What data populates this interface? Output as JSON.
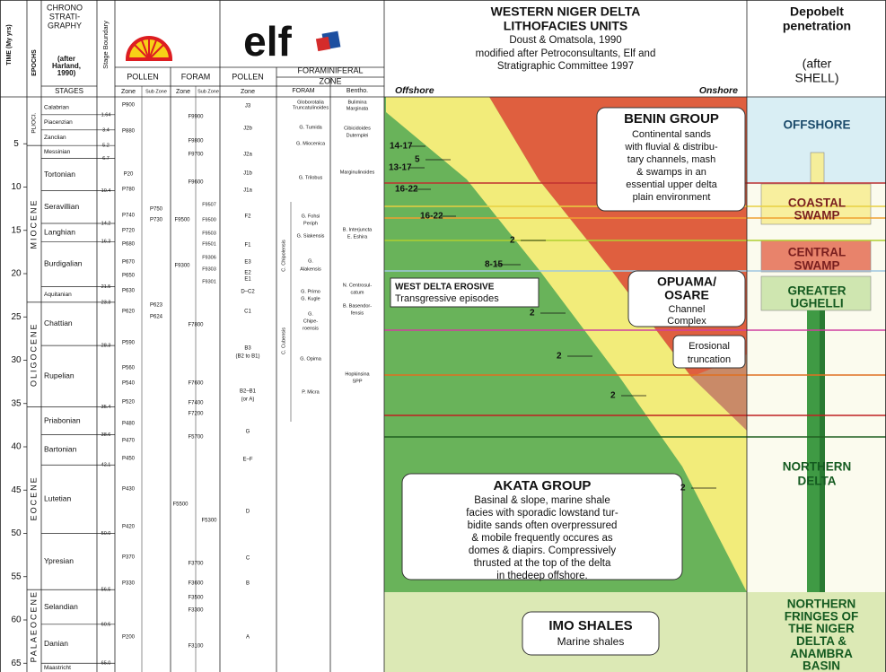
{
  "header": {
    "time_label": "TIME (My yrs)",
    "epochs_label": "EPOCHS",
    "chrono_title": [
      "CHRONO",
      "STRATI-",
      "GRAPHY"
    ],
    "chrono_source": [
      "(after",
      "Harland,",
      "1990)"
    ],
    "stages_label": "STAGES",
    "boundary_label": "Stage Boundary",
    "elf": "elf",
    "columns": [
      "POLLEN",
      "FORAM",
      "POLLEN",
      "FORAMINIFERAL",
      "ZONE",
      "FORAM",
      "Bentho."
    ],
    "subcolumns": [
      "Zone",
      "Sub Zone",
      "Zone",
      "Sub Zone",
      "Zone"
    ],
    "litho_title": [
      "WESTERN NIGER DELTA",
      "LITHOFACIES UNITS",
      "Doust & Omatsola, 1990",
      "modified after Petroconsultants, Elf and",
      "Stratigraphic Committee 1997"
    ],
    "offshore": "Offshore",
    "onshore": "Onshore",
    "depobelt_title": [
      "Depobelt",
      "penetration",
      "(after",
      "SHELL)"
    ]
  },
  "time_ticks": [
    5,
    10,
    15,
    20,
    25,
    30,
    35,
    40,
    45,
    50,
    55,
    60,
    65
  ],
  "epochs": [
    "PLIOCI.",
    "MIOCENE",
    "OLIGOCENE",
    "EOCENE",
    "PALAEOCENE"
  ],
  "stages": [
    "Calabrian",
    "Piacenzian",
    "Zanclian",
    "Messinian",
    "Tortonian",
    "Seravillian",
    "Langhian",
    "Burdigalian",
    "Aquitanian",
    "Chattian",
    "Rupelian",
    "Priabonian",
    "Bartonian",
    "Lutetian",
    "Ypresian",
    "Selandian",
    "Danian",
    "Maastricht"
  ],
  "boundaries": [
    1.64,
    3.4,
    5.2,
    6.7,
    10.4,
    14.2,
    16.3,
    21.5,
    23.3,
    28.3,
    35.4,
    38.6,
    42.1,
    {
      "value": 50,
      "label": "50.0"
    },
    56.5,
    60.5,
    {
      "value": 65,
      "label": "65.0"
    }
  ],
  "shell_pollen_zones": [
    "P900",
    "P880",
    "P20",
    "P780",
    "P740",
    "P720",
    "P680",
    "P670",
    "P650",
    "P630",
    "P620",
    "P590",
    "P560",
    "P540",
    "P520",
    "P480",
    "P470",
    "P450",
    "P430",
    "P420",
    "P370",
    "P330",
    "P200"
  ],
  "shell_pollen_subzones": [
    "P750",
    "P730",
    "P623",
    "P624"
  ],
  "shell_foram_zones": [
    "F9900",
    "F9800",
    "F9700",
    "F9600",
    "F9500",
    "F9300",
    "F7800",
    "F7600",
    "F7400",
    "F7200",
    "F5700",
    "F5500",
    "F5300",
    "F3700",
    "F3600",
    "F3500",
    "F3300",
    "F3100"
  ],
  "shell_foram_subzones": [
    "F9507",
    "F9500",
    "F9503",
    "F9501",
    "F9306",
    "F9303",
    "F9301"
  ],
  "elf_pollen_zones": [
    "J3",
    "J2b",
    "J2a",
    "J1b",
    "J1a",
    "F2",
    "F1",
    "E3",
    "E2",
    "E1",
    "D–C2",
    "C1",
    "B3",
    "(B2 to B1)",
    "B2–B1",
    "(or A)",
    "G",
    "E–F",
    "D",
    "C",
    "B",
    "A"
  ],
  "elf_foram_zones": [
    "Globorotalia",
    "Truncatulinoides",
    "G. Tumida",
    "G. Miocenica",
    "G. Trilobus",
    "G. Fohsi",
    "Periph",
    "G. Siakensis",
    "G.",
    "Alakensis",
    "G. Primo",
    "G. Kugle",
    "G.",
    "Chipe-",
    "roensis",
    "G. Opima",
    "P. Micra"
  ],
  "elf_foram_groups": [
    "C. Chipolensis",
    "C. Cubensis"
  ],
  "elf_bentho_zones": [
    "Bulimina",
    "Marginata",
    "Cibicidoides",
    "Dutemplei",
    "Marginulinoides",
    "B. Interjuncta",
    "E. Eshira",
    "N. Centrosul-",
    "catum",
    "B. Basendor-",
    "fensis",
    "Hopkinsina",
    "SPP"
  ],
  "lithofacies": {
    "benin": [
      "BENIN GROUP",
      "Continental sands",
      "with fluvial & distribu-",
      "tary channels, mash",
      "& swamps in an",
      "essential upper delta",
      "plain environment"
    ],
    "west_delta": [
      "WEST DELTA EROSIVE",
      "Transgressive episodes"
    ],
    "opuama": [
      "OPUAMA/",
      "OSARE",
      "Channel",
      "Complex"
    ],
    "erosional": [
      "Erosional",
      "truncation"
    ],
    "akata": [
      "AKATA GROUP",
      "Basinal & slope, marine shale",
      "facies with sporadic lowstand tur-",
      "bidite sands often overpressured",
      "& mobile frequently occures as",
      "domes & diapirs. Compressively",
      "thrusted at the top  of the delta",
      "in thedeep offshore."
    ],
    "imo": [
      "IMO SHALES",
      "Marine shales"
    ],
    "cycles": [
      "14-17",
      "5",
      "13-17",
      "16-22",
      "16-22",
      "2",
      "8-15",
      "2",
      "2",
      "2",
      "2"
    ]
  },
  "depobelts": [
    [
      "OFFSHORE"
    ],
    [
      "COASTAL",
      "SWAMP"
    ],
    [
      "CENTRAL",
      "SWAMP"
    ],
    [
      "GREATER",
      "UGHELLI"
    ],
    [
      "NORTHERN",
      "DELTA"
    ],
    [
      "NORTHERN",
      "FRINGES OF",
      "THE NIGER",
      "DELTA &",
      "ANAMBRA",
      "BASIN"
    ]
  ]
}
